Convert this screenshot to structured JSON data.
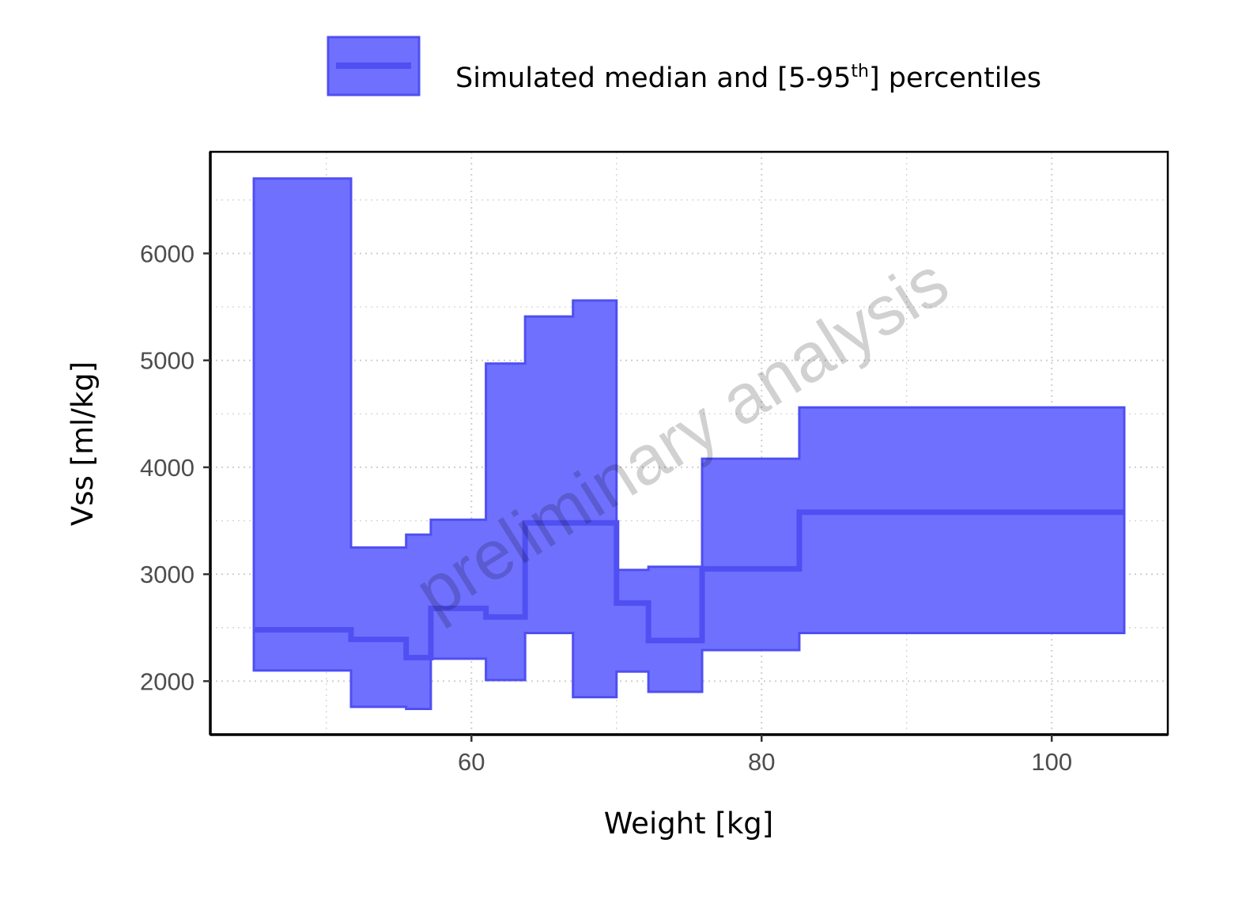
{
  "colors": {
    "band_fill": "#7070ff",
    "band_stroke": "#4f4ff2",
    "median": "#4f4ff2",
    "grid": "#cfcfcf"
  },
  "legend": {
    "label_main": "Simulated median and [5-95",
    "label_sup": "th",
    "label_end": "] percentiles"
  },
  "watermark": "preliminary analysis",
  "chart_data": {
    "type": "area",
    "xlabel": "Weight [kg]",
    "ylabel": "Vss [ml/kg]",
    "xlim": [
      42,
      108
    ],
    "ylim": [
      1500,
      6950
    ],
    "xticks": [
      "60",
      "80",
      "100"
    ],
    "yticks": [
      "2000",
      "3000",
      "4000",
      "5000",
      "6000"
    ],
    "grid": true,
    "legend_position": "top",
    "bins": [
      {
        "x0": 45,
        "x1": 51.7,
        "p5": 2100,
        "median": 2480,
        "p95": 6700
      },
      {
        "x0": 51.7,
        "x1": 55.5,
        "p5": 1760,
        "median": 2390,
        "p95": 3250
      },
      {
        "x0": 55.5,
        "x1": 57.2,
        "p5": 1740,
        "median": 2220,
        "p95": 3370
      },
      {
        "x0": 57.2,
        "x1": 61.0,
        "p5": 2210,
        "median": 2680,
        "p95": 3510
      },
      {
        "x0": 61.0,
        "x1": 63.7,
        "p5": 2010,
        "median": 2600,
        "p95": 4970
      },
      {
        "x0": 63.7,
        "x1": 67.0,
        "p5": 2450,
        "median": 3480,
        "p95": 5410
      },
      {
        "x0": 67.0,
        "x1": 70.0,
        "p5": 1850,
        "median": 3480,
        "p95": 5560
      },
      {
        "x0": 70.0,
        "x1": 72.2,
        "p5": 2090,
        "median": 2730,
        "p95": 3040
      },
      {
        "x0": 72.2,
        "x1": 75.9,
        "p5": 1900,
        "median": 2380,
        "p95": 3070
      },
      {
        "x0": 75.9,
        "x1": 82.6,
        "p5": 2290,
        "median": 3050,
        "p95": 4080
      },
      {
        "x0": 82.6,
        "x1": 105,
        "p5": 2450,
        "median": 3580,
        "p95": 4560
      }
    ]
  }
}
